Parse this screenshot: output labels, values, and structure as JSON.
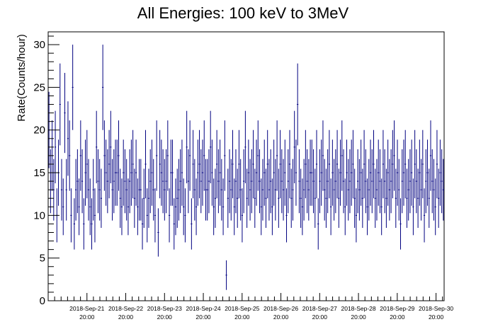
{
  "chart_data": {
    "type": "scatter",
    "style": "points-with-error-bars",
    "title": "All Energies:  100 keV to 3MeV",
    "xlabel": "",
    "ylabel": "Rate(Counts/hour)",
    "ylim": [
      0,
      31.5
    ],
    "yticks": [
      0,
      5,
      10,
      15,
      20,
      25,
      30
    ],
    "x_unit": "hours since start of 2018-Sep-20 20:00",
    "xlim": [
      0,
      245
    ],
    "xticks": [
      {
        "x": 24,
        "date": "2018-Sep-21",
        "time": "20:00"
      },
      {
        "x": 48,
        "date": "2018-Sep-22",
        "time": "20:00"
      },
      {
        "x": 72,
        "date": "2018-Sep-23",
        "time": "20:00"
      },
      {
        "x": 96,
        "date": "2018-Sep-24",
        "time": "20:00"
      },
      {
        "x": 120,
        "date": "2018-Sep-25",
        "time": "20:00"
      },
      {
        "x": 144,
        "date": "2018-Sep-26",
        "time": "20:00"
      },
      {
        "x": 168,
        "date": "2018-Sep-27",
        "time": "20:00"
      },
      {
        "x": 192,
        "date": "2018-Sep-28",
        "time": "20:00"
      },
      {
        "x": 216,
        "date": "2018-Sep-29",
        "time": "20:00"
      },
      {
        "x": 240,
        "date": "2018-Sep-30",
        "time": "20:00"
      }
    ],
    "grid": false,
    "legend": "none",
    "series": [
      {
        "color": "#000080",
        "error": "poisson",
        "values": [
          20,
          14,
          17,
          13,
          18,
          10,
          15,
          23,
          13,
          11,
          22,
          13,
          19,
          17,
          10,
          25,
          9,
          13,
          14,
          11,
          17,
          14,
          9,
          15,
          16,
          13,
          11,
          9,
          13,
          10,
          18,
          14,
          13,
          12,
          25,
          17,
          15,
          14,
          16,
          18,
          13,
          14,
          15,
          15,
          17,
          12,
          11,
          15,
          14,
          13,
          11,
          14,
          15,
          16,
          12,
          15,
          11,
          13,
          13,
          9,
          12,
          16,
          10,
          12,
          14,
          15,
          13,
          10,
          17,
          8,
          16,
          15,
          14,
          13,
          14,
          17,
          10,
          15,
          15,
          9,
          11,
          12,
          13,
          14,
          15,
          11,
          10,
          18,
          14,
          17,
          9,
          16,
          13,
          11,
          15,
          16,
          14,
          15,
          17,
          13,
          13,
          14,
          18,
          15,
          11,
          12,
          16,
          14,
          15,
          13,
          11,
          17,
          3,
          12,
          14,
          13,
          16,
          11,
          14,
          12,
          16,
          13,
          10,
          14,
          18,
          12,
          15,
          13,
          14,
          16,
          12,
          15,
          17,
          14,
          11,
          13,
          15,
          12,
          16,
          13,
          14,
          11,
          15,
          13,
          17,
          12,
          16,
          14,
          13,
          15,
          10,
          14,
          16,
          12,
          13,
          18,
          15,
          23,
          14,
          12,
          11,
          13,
          16,
          14,
          13,
          15,
          15,
          14,
          12,
          16,
          9,
          14,
          15,
          17,
          13,
          12,
          14,
          16,
          11,
          15,
          13,
          14,
          16,
          12,
          15,
          17,
          14,
          11,
          15,
          13,
          14,
          15,
          16,
          12,
          10,
          14,
          13,
          15,
          12,
          16,
          14,
          11,
          13,
          15,
          14,
          16,
          12,
          13,
          15,
          14,
          11,
          16,
          14,
          12,
          15,
          13,
          14,
          16,
          17,
          12,
          15,
          13,
          9,
          14,
          15,
          16,
          12,
          13,
          14,
          15,
          11,
          16,
          14,
          12,
          15,
          13,
          16,
          10,
          14,
          15,
          12,
          17,
          14,
          13,
          11,
          16,
          12,
          15,
          14,
          13
        ]
      }
    ]
  }
}
